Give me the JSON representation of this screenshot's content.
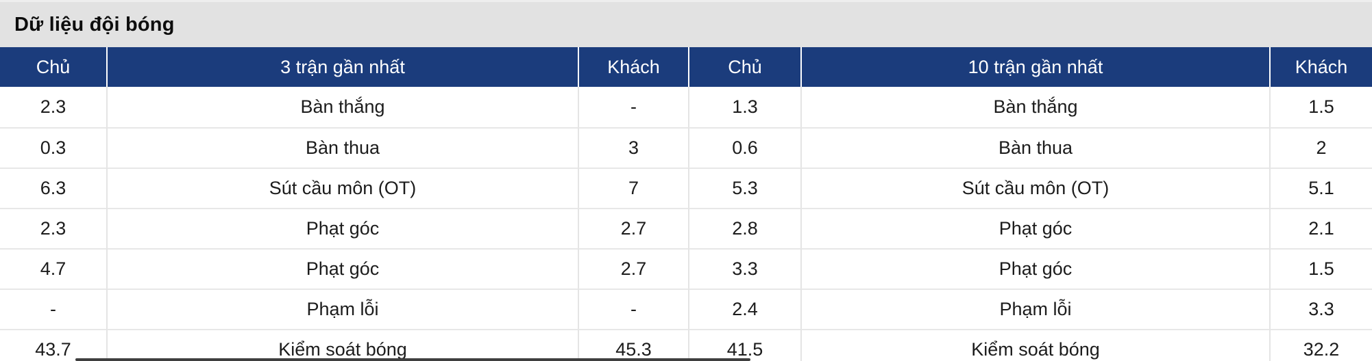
{
  "title": "Dữ liệu đội bóng",
  "table": {
    "headers": [
      "Chủ",
      "3 trận gần nhất",
      "Khách",
      "Chủ",
      "10 trận gần nhất",
      "Khách"
    ],
    "rows": [
      [
        "2.3",
        "Bàn thắng",
        "-",
        "1.3",
        "Bàn thắng",
        "1.5"
      ],
      [
        "0.3",
        "Bàn thua",
        "3",
        "0.6",
        "Bàn thua",
        "2"
      ],
      [
        "6.3",
        "Sút cầu môn (OT)",
        "7",
        "5.3",
        "Sút cầu môn (OT)",
        "5.1"
      ],
      [
        "2.3",
        "Phạt góc",
        "2.7",
        "2.8",
        "Phạt góc",
        "2.1"
      ],
      [
        "4.7",
        "Phạt góc",
        "2.7",
        "3.3",
        "Phạt góc",
        "1.5"
      ],
      [
        "-",
        "Phạm lỗi",
        "-",
        "2.4",
        "Phạm lỗi",
        "3.3"
      ],
      [
        "43.7",
        "Kiểm soát bóng",
        "45.3",
        "41.5",
        "Kiểm soát bóng",
        "32.2"
      ]
    ]
  },
  "colors": {
    "header_bg": "#1b3c7c",
    "header_text": "#ffffff",
    "title_bg": "#e2e2e2",
    "row_divider": "#e7e7e7",
    "column_divider": "#e4e4e4",
    "scrollbar_thumb": "#3f3f3f"
  }
}
